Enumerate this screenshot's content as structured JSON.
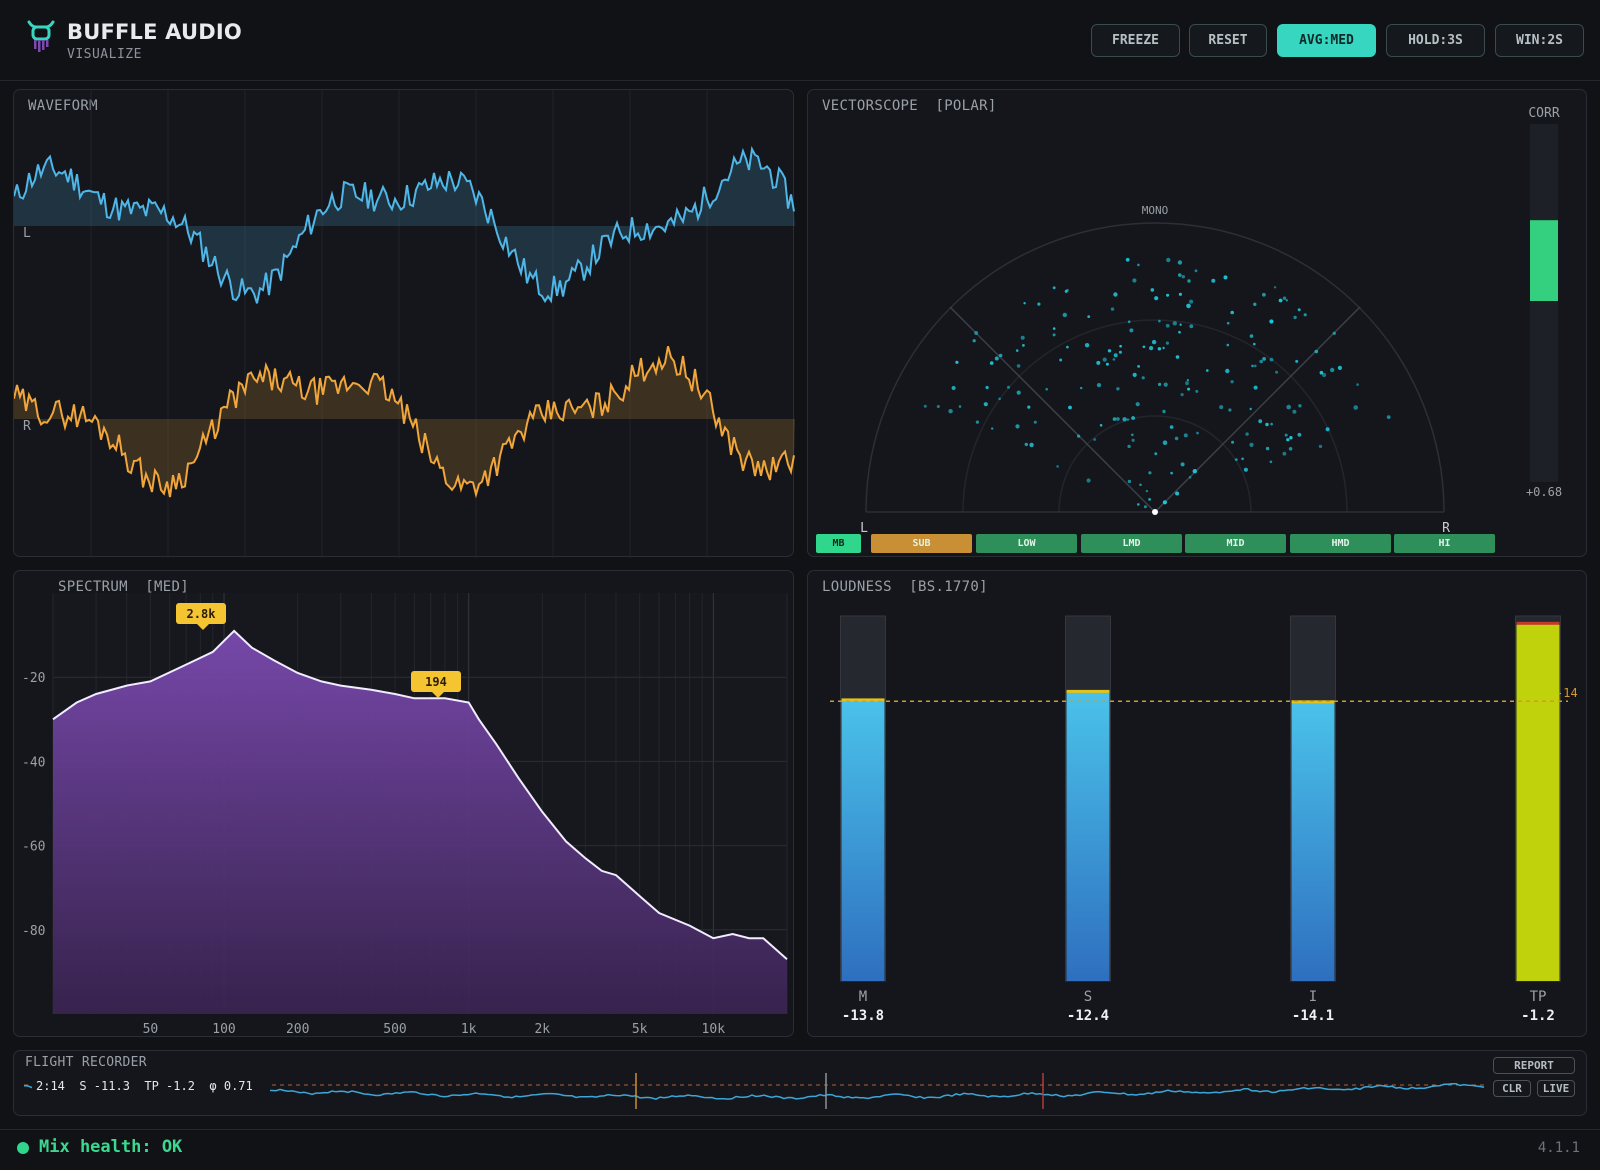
{
  "app": {
    "brand_title": "BUFFLE AUDIO",
    "brand_sub": "VISUALIZE",
    "version": "4.1.1"
  },
  "toolbar": {
    "buttons": [
      {
        "label": "FREEZE",
        "active": false
      },
      {
        "label": "RESET",
        "active": false
      },
      {
        "label": "AVG:MED",
        "active": true
      },
      {
        "label": "HOLD:3S",
        "active": false
      },
      {
        "label": "WIN:2S",
        "active": false
      }
    ]
  },
  "waveform": {
    "title": "WAVEFORM",
    "channel_left": "L",
    "channel_right": "R",
    "colors": {
      "left": "#4fb6e8",
      "right": "#f0a63a"
    }
  },
  "vectorscope": {
    "title": "VECTORSCOPE  [POLAR]",
    "mono_label": "MONO",
    "left_label": "L",
    "right_label": "R",
    "corr_label": "CORR",
    "corr_value": "+0.68",
    "corr_level": 0.68,
    "bands": [
      {
        "label": "MB",
        "color": "#2fd68c"
      },
      {
        "label": "SUB",
        "color": "#c98f35"
      },
      {
        "label": "LOW",
        "color": "#2f8f5b"
      },
      {
        "label": "LMD",
        "color": "#2f8f5b"
      },
      {
        "label": "MID",
        "color": "#2f8f5b"
      },
      {
        "label": "HMD",
        "color": "#2f8f5b"
      },
      {
        "label": "HI",
        "color": "#2f8f5b"
      }
    ]
  },
  "spectrum": {
    "title": "SPECTRUM  [MED]",
    "peak_labels": [
      "2.8k",
      "194"
    ],
    "color": "#7b4ab0"
  },
  "chart_data": {
    "type": "area",
    "title": "SPECTRUM  [MED]",
    "xlabel": "",
    "ylabel": "",
    "x_ticks": [
      "50",
      "100",
      "200",
      "500",
      "1k",
      "2k",
      "5k",
      "10k"
    ],
    "y_ticks": [
      "-20",
      "-40",
      "-60",
      "-80"
    ],
    "ylim": [
      -100,
      0
    ],
    "x_scale": "log",
    "xlim": [
      20,
      20000
    ],
    "x": [
      20,
      25,
      30,
      40,
      50,
      70,
      90,
      110,
      130,
      160,
      200,
      250,
      300,
      400,
      500,
      600,
      700,
      800,
      1000,
      1100,
      1300,
      1600,
      2000,
      2500,
      3000,
      3500,
      4000,
      5000,
      6000,
      8000,
      10000,
      12000,
      14000,
      16000,
      20000
    ],
    "series": [
      {
        "values": [
          -30,
          -26,
          -24,
          -22,
          -21,
          -17,
          -14,
          -9,
          -13,
          -16,
          -19,
          -21,
          -22,
          -23,
          -24,
          -25,
          -25,
          -25,
          -26,
          -30,
          -36,
          -44,
          -52,
          -59,
          -63,
          -66,
          -67,
          -72,
          -76,
          -79,
          -82,
          -81,
          -82,
          -82,
          -87
        ]
      }
    ],
    "grid": true
  },
  "loudness": {
    "title": "LOUDNESS  [BS.1770]",
    "target_label": "-14",
    "target": -14,
    "meters": [
      {
        "label": "M",
        "value": "-13.8",
        "level": -13.8,
        "color": "#46b8e6"
      },
      {
        "label": "S",
        "value": "-12.4",
        "level": -12.4,
        "color": "#46b8e6"
      },
      {
        "label": "I",
        "value": "-14.1",
        "level": -14.1,
        "color": "#46b8e6"
      },
      {
        "label": "TP",
        "value": "-1.2",
        "level": -1.2,
        "color": "#bfd20b"
      }
    ]
  },
  "flight_recorder": {
    "title": "FLIGHT RECORDER",
    "readout": "2:14  S -11.3  TP -1.2  φ 0.71",
    "buttons": {
      "report": "REPORT",
      "clr": "CLR",
      "live": "LIVE"
    }
  },
  "status": {
    "health": "Mix health: OK"
  }
}
